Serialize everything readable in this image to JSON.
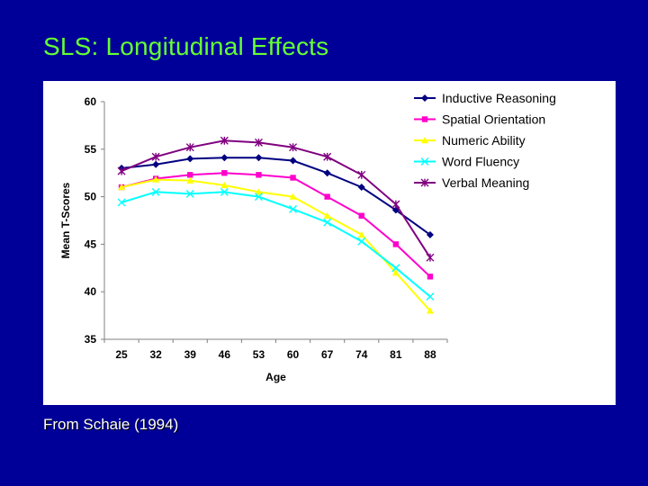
{
  "slide": {
    "title": "SLS:  Longitudinal Effects",
    "caption": "From Schaie (1994)"
  },
  "colors": {
    "background": "#000099",
    "title": "#66ff33",
    "caption": "#ffffff"
  },
  "chart_data": {
    "type": "line",
    "title": "",
    "xlabel": "Age",
    "ylabel": "Mean T-Scores",
    "categories": [
      "25",
      "32",
      "39",
      "46",
      "53",
      "60",
      "67",
      "74",
      "81",
      "88"
    ],
    "ylim": [
      35,
      60
    ],
    "yticks": [
      35,
      40,
      45,
      50,
      55,
      60
    ],
    "grid": false,
    "legend_position": "top-right",
    "series": [
      {
        "name": "Inductive Reasoning",
        "color": "#000080",
        "marker": "diamond",
        "values": [
          53.0,
          53.4,
          54.0,
          54.1,
          54.1,
          53.8,
          52.5,
          51.0,
          48.6,
          46.0
        ]
      },
      {
        "name": "Spatial Orientation",
        "color": "#ff00cc",
        "marker": "square",
        "values": [
          51.0,
          51.9,
          52.3,
          52.5,
          52.3,
          52.0,
          50.0,
          48.0,
          45.0,
          41.6
        ]
      },
      {
        "name": "Numeric Ability",
        "color": "#ffff00",
        "marker": "triangle",
        "values": [
          51.0,
          51.8,
          51.7,
          51.2,
          50.5,
          50.0,
          48.0,
          46.0,
          42.0,
          38.0
        ]
      },
      {
        "name": "Word Fluency",
        "color": "#00ffff",
        "marker": "x",
        "values": [
          49.4,
          50.5,
          50.3,
          50.5,
          50.0,
          48.7,
          47.3,
          45.3,
          42.5,
          39.5
        ]
      },
      {
        "name": "Verbal Meaning",
        "color": "#800080",
        "marker": "star",
        "values": [
          52.7,
          54.2,
          55.2,
          55.9,
          55.7,
          55.2,
          54.2,
          52.3,
          49.2,
          43.6
        ]
      }
    ]
  }
}
